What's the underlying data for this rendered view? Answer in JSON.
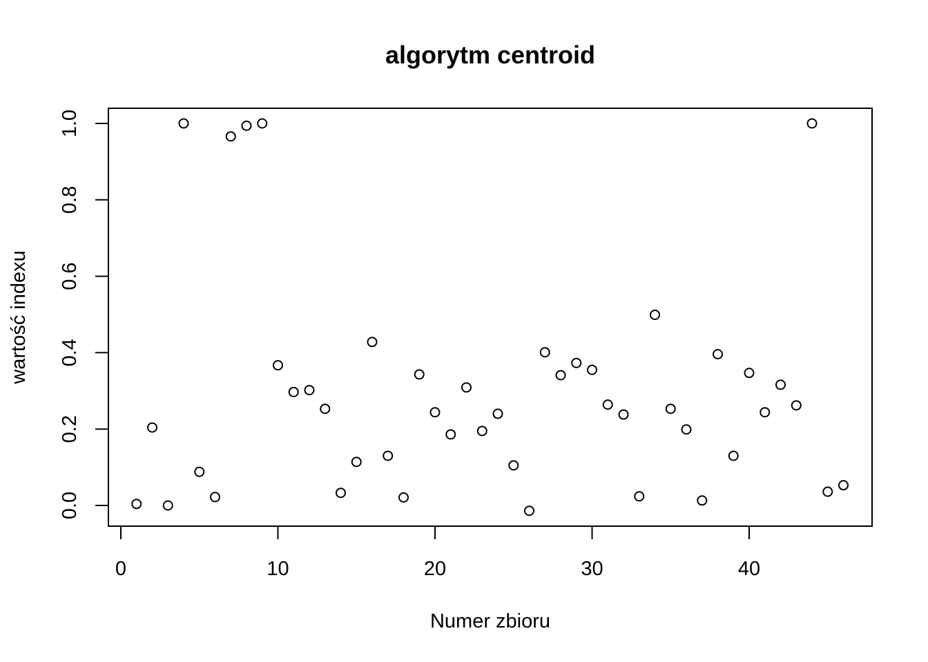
{
  "chart_data": {
    "type": "scatter",
    "title": "algorytm centroid",
    "xlabel": "Numer zbioru",
    "ylabel": "wartość indexu",
    "xlim": [
      0,
      46
    ],
    "ylim": [
      0,
      1
    ],
    "x_ticks": [
      0,
      10,
      20,
      30,
      40
    ],
    "x_tick_labels": [
      "0",
      "10",
      "20",
      "30",
      "40"
    ],
    "y_ticks": [
      0.0,
      0.2,
      0.4,
      0.6,
      0.8,
      1.0
    ],
    "y_tick_labels": [
      "0.0",
      "0.2",
      "0.4",
      "0.6",
      "0.8",
      "1.0"
    ],
    "grid": false,
    "marker": "open-circle",
    "series": [
      {
        "x": [
          1,
          2,
          3,
          4,
          5,
          6,
          7,
          8,
          9,
          10,
          11,
          12,
          13,
          14,
          15,
          16,
          17,
          18,
          19,
          20,
          21,
          22,
          23,
          24,
          25,
          26,
          27,
          28,
          29,
          30,
          31,
          32,
          33,
          34,
          35,
          36,
          37,
          38,
          39,
          40,
          41,
          42,
          43,
          44,
          45,
          46
        ],
        "values": [
          0.004,
          0.204,
          0.0,
          1.0,
          0.088,
          0.022,
          0.966,
          0.994,
          1.0,
          0.367,
          0.297,
          0.302,
          0.253,
          0.033,
          0.114,
          0.428,
          0.13,
          0.021,
          0.343,
          0.244,
          0.186,
          0.309,
          0.195,
          0.24,
          0.105,
          -0.014,
          0.401,
          0.341,
          0.373,
          0.355,
          0.264,
          0.238,
          0.024,
          0.499,
          0.253,
          0.199,
          0.013,
          0.396,
          0.13,
          0.347,
          0.244,
          0.316,
          0.262,
          1.0,
          0.036,
          0.053
        ]
      }
    ]
  }
}
